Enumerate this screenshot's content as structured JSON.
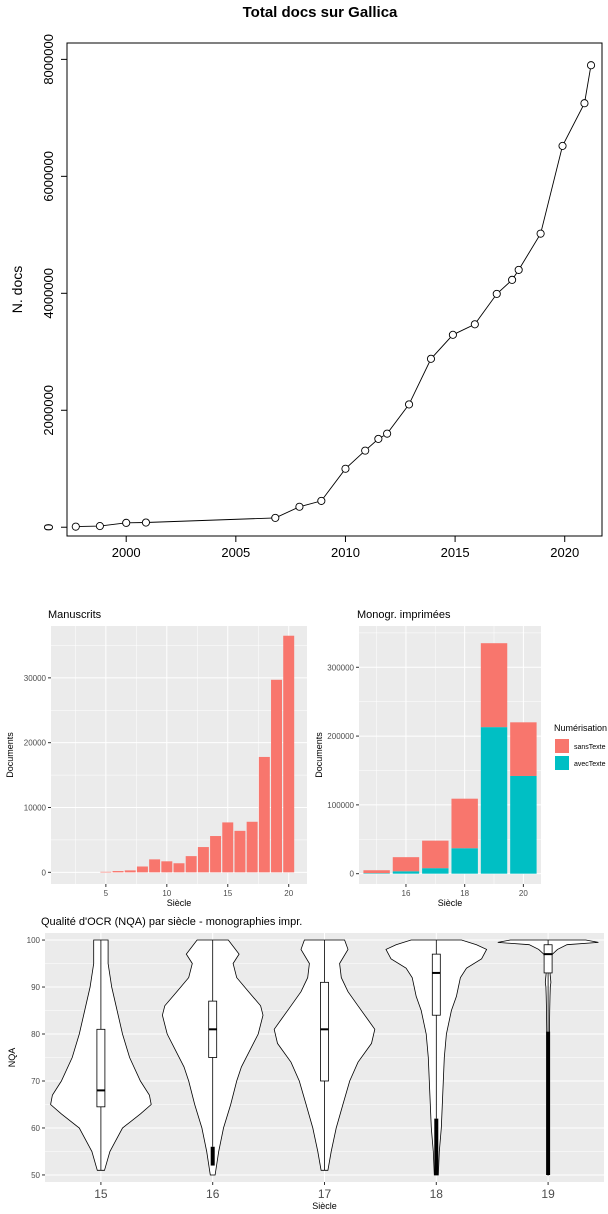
{
  "chart_data": [
    {
      "id": "gallica_total",
      "type": "scatter",
      "title": "Total docs sur Gallica",
      "xlabel": "",
      "ylabel": "N. docs",
      "xlim": [
        1997.3,
        2021.7
      ],
      "ylim": [
        -150000,
        8280000
      ],
      "x_ticks": [
        2000,
        2005,
        2010,
        2015,
        2020
      ],
      "y_ticks": [
        0,
        2000000,
        4000000,
        6000000,
        8000000
      ],
      "y_tick_labels": [
        "0",
        "2000000",
        "4000000",
        "6000000",
        "8000000"
      ],
      "grid": false,
      "marker": "open-circle",
      "line": true,
      "x": [
        1997.7,
        1998.8,
        2000.0,
        2000.9,
        2006.8,
        2007.9,
        2008.9,
        2010.0,
        2010.9,
        2011.5,
        2011.9,
        2012.9,
        2013.9,
        2014.9,
        2015.9,
        2016.9,
        2017.6,
        2017.9,
        2018.9,
        2019.9,
        2020.9,
        2021.2
      ],
      "y": [
        10000,
        20000,
        75000,
        80000,
        160000,
        350000,
        450000,
        1000000,
        1310000,
        1510000,
        1600000,
        2100000,
        2880000,
        3290000,
        3470000,
        3990000,
        4230000,
        4400000,
        5020000,
        6520000,
        7250000,
        7900000
      ]
    },
    {
      "id": "manuscrits",
      "type": "bar",
      "title": "Manuscrits",
      "xlabel": "Siècle",
      "ylabel": "Documents",
      "xlim": [
        0.5,
        21.5
      ],
      "ylim": [
        -1800,
        38000
      ],
      "x_ticks": [
        5,
        10,
        15,
        20
      ],
      "y_ticks": [
        0,
        10000,
        20000,
        30000
      ],
      "grid": true,
      "color": "#F8766D",
      "categories": [
        1,
        2,
        3,
        4,
        5,
        6,
        7,
        8,
        9,
        10,
        11,
        12,
        13,
        14,
        15,
        16,
        17,
        18,
        19,
        20
      ],
      "values": [
        0,
        0,
        0,
        0,
        80,
        200,
        300,
        900,
        2000,
        1700,
        1400,
        2500,
        3900,
        5600,
        7700,
        6400,
        7800,
        17800,
        29700,
        36500
      ]
    },
    {
      "id": "monogr",
      "type": "bar",
      "stacked": true,
      "title": "Monogr. imprimées",
      "xlabel": "Siècle",
      "ylabel": "Documents",
      "xlim": [
        14.4,
        20.6
      ],
      "ylim": [
        -15000,
        360000
      ],
      "x_ticks": [
        16,
        18,
        20
      ],
      "y_ticks": [
        0,
        100000,
        200000,
        300000
      ],
      "grid": true,
      "legend_title": "Numérisation",
      "legend_position": "right",
      "categories": [
        15,
        16,
        17,
        18,
        19,
        20
      ],
      "series": [
        {
          "name": "avecTexte",
          "color": "#00BFC4",
          "values": [
            800,
            3500,
            8000,
            37000,
            213000,
            142000
          ]
        },
        {
          "name": "sansTexte",
          "color": "#F8766D",
          "values": [
            4200,
            20500,
            40000,
            72000,
            122000,
            78000
          ]
        }
      ]
    },
    {
      "id": "nqa_violin",
      "type": "violin",
      "title": "Qualité d'OCR (NQA) par siècle - monographies impr.",
      "xlabel": "Siècle",
      "ylabel": "NQA",
      "ylim": [
        48.5,
        101.5
      ],
      "y_ticks": [
        50,
        60,
        70,
        80,
        90,
        100
      ],
      "grid": true,
      "categories": [
        "15",
        "16",
        "17",
        "18",
        "19"
      ],
      "boxes": [
        {
          "q1": 64.5,
          "median": 68.0,
          "q3": 81.0,
          "whisker_low": 51,
          "whisker_high": 100,
          "outliers_low": []
        },
        {
          "q1": 75.0,
          "median": 81.0,
          "q3": 87.0,
          "whisker_low": 56,
          "whisker_high": 100,
          "outliers_low": [
            52,
            56
          ]
        },
        {
          "q1": 70.0,
          "median": 81.0,
          "q3": 91.0,
          "whisker_low": 51,
          "whisker_high": 100,
          "outliers_low": []
        },
        {
          "q1": 84.0,
          "median": 93.0,
          "q3": 97.0,
          "whisker_low": 62,
          "whisker_high": 100,
          "outliers_low": [
            50,
            62
          ]
        },
        {
          "q1": 93.0,
          "median": 97.0,
          "q3": 99.0,
          "whisker_low": 80.5,
          "whisker_high": 100,
          "outliers_low": [
            50,
            80.5
          ]
        }
      ],
      "density": [
        {
          "y": [
            51,
            55,
            60,
            63,
            65,
            67,
            70,
            75,
            80,
            85,
            90,
            95,
            100
          ],
          "w": [
            0.02,
            0.05,
            0.12,
            0.22,
            0.28,
            0.27,
            0.22,
            0.16,
            0.12,
            0.09,
            0.06,
            0.04,
            0.04
          ]
        },
        {
          "y": [
            50,
            55,
            60,
            65,
            70,
            73,
            76,
            80,
            84,
            86,
            89,
            92,
            95,
            97,
            100
          ],
          "w": [
            0.02,
            0.05,
            0.09,
            0.15,
            0.2,
            0.24,
            0.3,
            0.38,
            0.42,
            0.4,
            0.3,
            0.2,
            0.17,
            0.22,
            0.13
          ]
        },
        {
          "y": [
            51,
            55,
            60,
            65,
            70,
            74,
            78,
            81,
            83,
            86,
            89,
            92,
            95,
            98,
            100
          ],
          "w": [
            0.02,
            0.04,
            0.07,
            0.11,
            0.15,
            0.2,
            0.28,
            0.3,
            0.26,
            0.2,
            0.14,
            0.1,
            0.09,
            0.14,
            0.12
          ]
        },
        {
          "y": [
            50,
            55,
            60,
            65,
            70,
            75,
            80,
            85,
            88,
            90,
            92,
            94,
            96,
            98,
            99,
            100
          ],
          "w": [
            0.02,
            0.03,
            0.05,
            0.06,
            0.07,
            0.08,
            0.1,
            0.15,
            0.2,
            0.22,
            0.24,
            0.3,
            0.45,
            0.5,
            0.4,
            0.25
          ]
        },
        {
          "y": [
            50,
            60,
            70,
            80,
            85,
            88,
            90,
            91,
            93,
            95,
            96,
            97,
            98,
            99,
            99.5,
            100
          ],
          "w": [
            0.01,
            0.02,
            0.03,
            0.04,
            0.05,
            0.06,
            0.07,
            0.09,
            0.06,
            0.1,
            0.08,
            0.14,
            0.3,
            0.6,
            1.6,
            1.2
          ]
        }
      ]
    }
  ]
}
